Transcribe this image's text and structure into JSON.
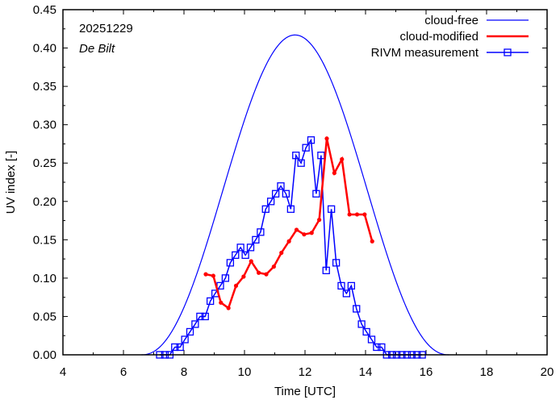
{
  "chart_data": {
    "type": "line",
    "xlabel": "Time  [UTC]",
    "ylabel": "UV index  [-]",
    "xlim": [
      4,
      20
    ],
    "ylim": [
      0,
      0.45
    ],
    "xticks": [
      "4",
      "6",
      "8",
      "10",
      "12",
      "14",
      "16",
      "18",
      "20"
    ],
    "yticks": [
      "0.00",
      "0.05",
      "0.10",
      "0.15",
      "0.20",
      "0.25",
      "0.30",
      "0.35",
      "0.40",
      "0.45"
    ],
    "annotations": {
      "date": "20251229",
      "location": "De Bilt"
    },
    "legend_position": "top-right",
    "colors": {
      "cloud_free": "#0000ff",
      "cloud_modified": "#ff0000",
      "measurement": "#0000ff"
    },
    "series": [
      {
        "name": "cloud-free",
        "style": "line",
        "peak_time": 11.67,
        "peak_value": 0.417,
        "start": 6.6,
        "end": 16.75
      },
      {
        "name": "cloud-modified",
        "style": "line-dots",
        "x": [
          8.72,
          8.97,
          9.22,
          9.47,
          9.72,
          9.97,
          10.22,
          10.47,
          10.72,
          10.97,
          11.22,
          11.47,
          11.72,
          11.97,
          12.22,
          12.47,
          12.72,
          12.97,
          13.22,
          13.47,
          13.72,
          13.97,
          14.22
        ],
        "values": [
          0.105,
          0.103,
          0.068,
          0.061,
          0.09,
          0.102,
          0.122,
          0.107,
          0.105,
          0.115,
          0.133,
          0.148,
          0.163,
          0.157,
          0.159,
          0.176,
          0.282,
          0.237,
          0.255,
          0.183,
          0.183,
          0.183,
          0.148
        ]
      },
      {
        "name": "RIVM measurement",
        "style": "line-squares",
        "x": [
          7.2,
          7.37,
          7.53,
          7.7,
          7.87,
          8.03,
          8.2,
          8.37,
          8.53,
          8.7,
          8.87,
          9.03,
          9.2,
          9.37,
          9.53,
          9.7,
          9.87,
          10.03,
          10.2,
          10.37,
          10.53,
          10.7,
          10.87,
          11.03,
          11.2,
          11.37,
          11.53,
          11.7,
          11.87,
          12.03,
          12.2,
          12.37,
          12.53,
          12.7,
          12.87,
          13.03,
          13.2,
          13.37,
          13.53,
          13.7,
          13.87,
          14.03,
          14.2,
          14.37,
          14.53,
          14.7,
          14.87,
          15.03,
          15.2,
          15.37,
          15.53,
          15.7,
          15.87
        ],
        "values": [
          0.0,
          0.0,
          0.0,
          0.01,
          0.01,
          0.02,
          0.03,
          0.04,
          0.05,
          0.05,
          0.07,
          0.08,
          0.09,
          0.1,
          0.12,
          0.13,
          0.14,
          0.13,
          0.14,
          0.15,
          0.16,
          0.19,
          0.2,
          0.21,
          0.22,
          0.21,
          0.19,
          0.26,
          0.25,
          0.27,
          0.28,
          0.21,
          0.26,
          0.11,
          0.19,
          0.12,
          0.09,
          0.08,
          0.09,
          0.06,
          0.04,
          0.03,
          0.02,
          0.01,
          0.01,
          0.0,
          0.0,
          0.0,
          0.0,
          0.0,
          0.0,
          0.0,
          0.0
        ]
      }
    ]
  }
}
